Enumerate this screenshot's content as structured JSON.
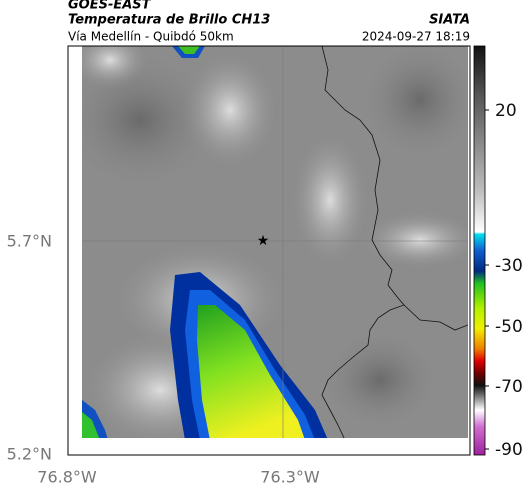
{
  "header": {
    "source": "GOES-EAST",
    "title": "Temperatura de Brillo CH13",
    "agency": "SIATA",
    "subtitle": "Vía Medellín - Quibdó 50km",
    "datetime": "2024-09-27 18:19"
  },
  "map": {
    "lat_labels": [
      "5.7°N",
      "5.2°N"
    ],
    "lon_labels": [
      "76.8°W",
      "76.3°W"
    ]
  },
  "colorbar": {
    "tick_labels": [
      "20",
      "-30",
      "-50",
      "-70",
      "-90"
    ]
  }
}
